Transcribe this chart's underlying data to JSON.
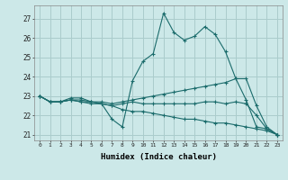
{
  "xlabel": "Humidex (Indice chaleur)",
  "bg_color": "#cce8e8",
  "grid_color": "#aacccc",
  "line_color": "#1a6b6b",
  "xlim": [
    -0.5,
    23.5
  ],
  "ylim": [
    20.7,
    27.7
  ],
  "yticks": [
    21,
    22,
    23,
    24,
    25,
    26,
    27
  ],
  "xticks": [
    0,
    1,
    2,
    3,
    4,
    5,
    6,
    7,
    8,
    9,
    10,
    11,
    12,
    13,
    14,
    15,
    16,
    17,
    18,
    19,
    20,
    21,
    22,
    23
  ],
  "series": [
    [
      23.0,
      22.7,
      22.7,
      22.9,
      22.9,
      22.7,
      22.6,
      21.8,
      21.4,
      23.8,
      24.8,
      25.2,
      27.3,
      26.3,
      25.9,
      26.1,
      26.6,
      26.2,
      25.3,
      23.9,
      22.8,
      21.4,
      21.3,
      21.0
    ],
    [
      23.0,
      22.7,
      22.7,
      22.8,
      22.7,
      22.7,
      22.6,
      22.5,
      22.6,
      22.7,
      22.6,
      22.6,
      22.6,
      22.6,
      22.6,
      22.6,
      22.7,
      22.7,
      22.6,
      22.7,
      22.6,
      22.0,
      21.3,
      21.0
    ],
    [
      23.0,
      22.7,
      22.7,
      22.8,
      22.8,
      22.7,
      22.7,
      22.6,
      22.7,
      22.8,
      22.9,
      23.0,
      23.1,
      23.2,
      23.3,
      23.4,
      23.5,
      23.6,
      23.7,
      23.9,
      23.9,
      22.5,
      21.4,
      21.0
    ],
    [
      23.0,
      22.7,
      22.7,
      22.8,
      22.7,
      22.6,
      22.6,
      22.5,
      22.3,
      22.2,
      22.2,
      22.1,
      22.0,
      21.9,
      21.8,
      21.8,
      21.7,
      21.6,
      21.6,
      21.5,
      21.4,
      21.3,
      21.2,
      21.0
    ]
  ]
}
